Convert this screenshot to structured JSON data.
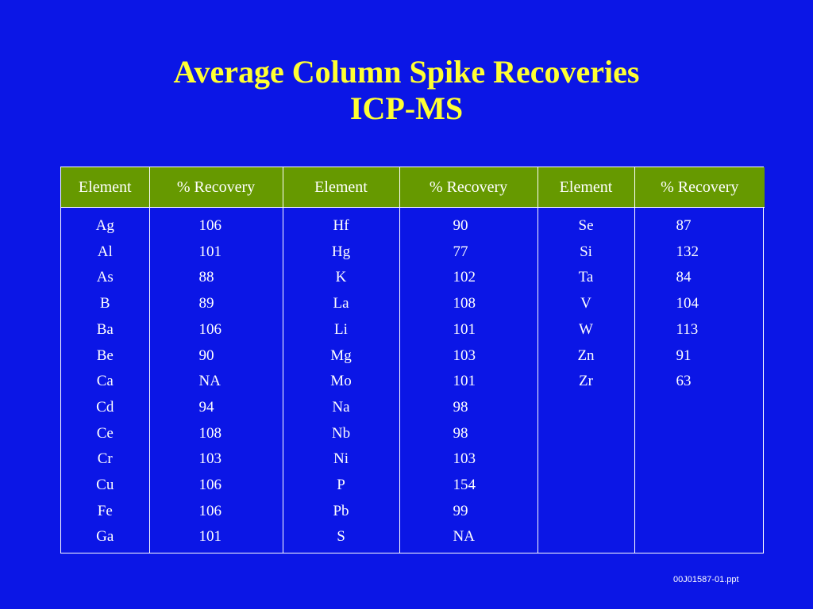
{
  "slide": {
    "title_line1": "Average Column Spike Recoveries",
    "title_line2": "ICP-MS",
    "footer": "00J01587-01.ppt"
  },
  "table": {
    "headers": [
      "Element",
      "% Recovery",
      "Element",
      "% Recovery",
      "Element",
      "% Recovery"
    ],
    "groups": [
      {
        "elements": [
          "Ag",
          "Al",
          "As",
          "B",
          "Ba",
          "Be",
          "Ca",
          "Cd",
          "Ce",
          "Cr",
          "Cu",
          "Fe",
          "Ga"
        ],
        "recoveries": [
          "106",
          "101",
          "88",
          "89",
          "106",
          "90",
          "NA",
          "94",
          "108",
          "103",
          "106",
          "106",
          "101"
        ]
      },
      {
        "elements": [
          "Hf",
          "Hg",
          "K",
          "La",
          "Li",
          "Mg",
          "Mo",
          "Na",
          "Nb",
          "Ni",
          "P",
          "Pb",
          "S"
        ],
        "recoveries": [
          "90",
          "77",
          "102",
          "108",
          "101",
          "103",
          "101",
          "98",
          "98",
          "103",
          "154",
          "99",
          "NA"
        ]
      },
      {
        "elements": [
          "Se",
          "Si",
          "Ta",
          "V",
          "W",
          "Zn",
          "Zr"
        ],
        "recoveries": [
          "87",
          "132",
          "84",
          "104",
          "113",
          "91",
          "63"
        ]
      }
    ]
  }
}
